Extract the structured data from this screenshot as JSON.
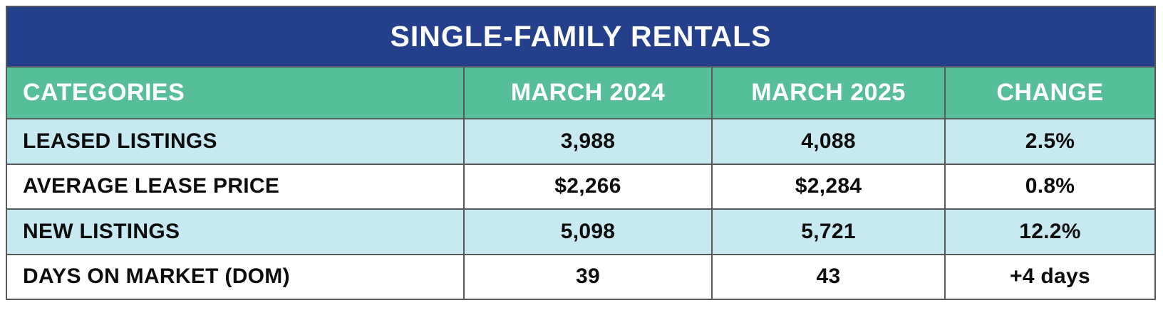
{
  "title": "SINGLE-FAMILY RENTALS",
  "colors": {
    "title_bg": "#24408c",
    "header_bg": "#56bf99",
    "row_alt_bg": "#c7e9f1",
    "row_bg": "#ffffff",
    "border": "#58595b",
    "header_text": "#ffffff",
    "cell_text": "#0d0d0d"
  },
  "chart_data": {
    "type": "table",
    "title": "SINGLE-FAMILY RENTALS",
    "columns": [
      "CATEGORIES",
      "MARCH 2024",
      "MARCH 2025",
      "CHANGE"
    ],
    "rows": [
      [
        "LEASED LISTINGS",
        "3,988",
        "4,088",
        "2.5%"
      ],
      [
        "AVERAGE LEASE PRICE",
        "$2,266",
        "$2,284",
        "0.8%"
      ],
      [
        "NEW LISTINGS",
        "5,098",
        "5,721",
        "12.2%"
      ],
      [
        "DAYS ON MARKET (DOM)",
        "39",
        "43",
        "+4 days"
      ]
    ]
  }
}
